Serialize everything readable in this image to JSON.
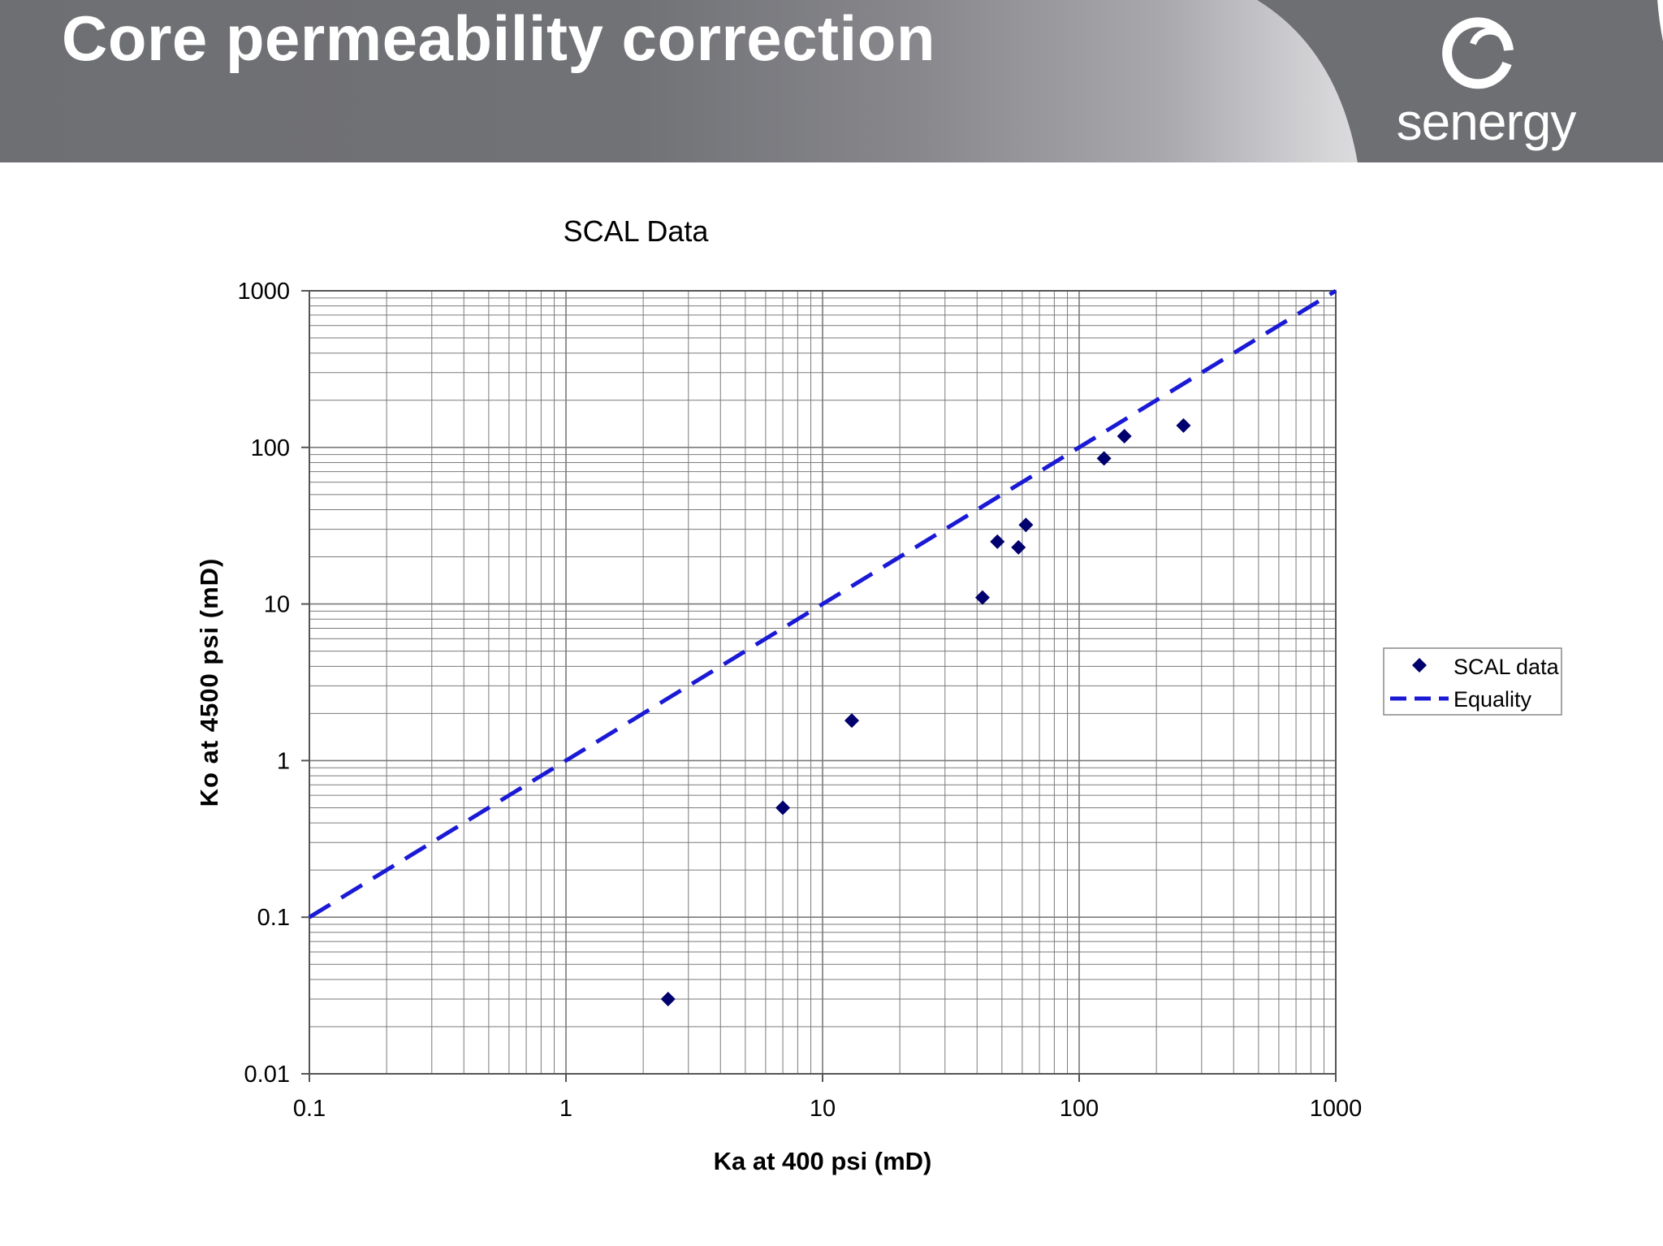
{
  "slide": {
    "title": "Core permeability correction",
    "logo_text": "senergy"
  },
  "colors": {
    "header": "#6e6f73",
    "marker": "#00006e",
    "line": "#1a1ad6",
    "grid": "#7a7a7a"
  },
  "chart_data": {
    "type": "scatter",
    "title": "SCAL Data",
    "xlabel": "Ka at 400 psi (mD)",
    "ylabel": "Ko at 4500 psi (mD)",
    "xscale": "log",
    "yscale": "log",
    "xlim": [
      0.1,
      1000
    ],
    "ylim": [
      0.01,
      1000
    ],
    "x_ticks": [
      "0.1",
      "1",
      "10",
      "100",
      "1000"
    ],
    "y_ticks": [
      "0.01",
      "0.1",
      "1",
      "10",
      "100",
      "1000"
    ],
    "grid": true,
    "legend_position": "right",
    "series": [
      {
        "name": "SCAL data",
        "kind": "markers",
        "marker": "diamond",
        "points": [
          {
            "x": 2.5,
            "y": 0.03
          },
          {
            "x": 7,
            "y": 0.5
          },
          {
            "x": 13,
            "y": 1.8
          },
          {
            "x": 42,
            "y": 11
          },
          {
            "x": 48,
            "y": 25
          },
          {
            "x": 58,
            "y": 23
          },
          {
            "x": 62,
            "y": 32
          },
          {
            "x": 125,
            "y": 85
          },
          {
            "x": 150,
            "y": 118
          },
          {
            "x": 255,
            "y": 138
          }
        ]
      },
      {
        "name": "Equality",
        "kind": "line",
        "style": "dashed",
        "points": [
          {
            "x": 0.1,
            "y": 0.1
          },
          {
            "x": 1000,
            "y": 1000
          }
        ]
      }
    ]
  }
}
